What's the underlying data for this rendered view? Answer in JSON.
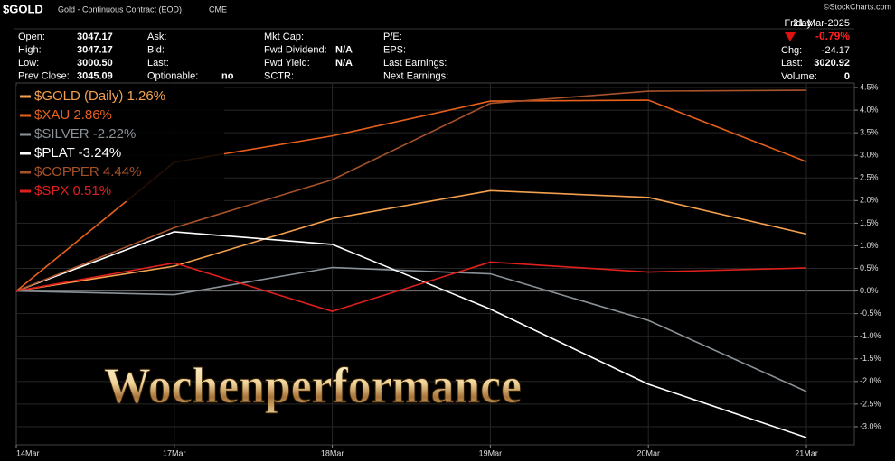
{
  "header": {
    "symbol": "$GOLD",
    "name": "Gold - Continuous Contract (EOD)",
    "exchange": "CME",
    "credit": "©StockCharts.com"
  },
  "info": [
    [
      {
        "label": "Open:",
        "value": "3047.17"
      },
      {
        "label": "High:",
        "value": "3047.17"
      },
      {
        "label": "Low:",
        "value": "3000.50"
      },
      {
        "label": "Prev Close:",
        "value": "3045.09"
      }
    ],
    [
      {
        "label": "Ask:"
      },
      {
        "label": "Bid:"
      },
      {
        "label": "Last:"
      },
      {
        "label": "Optionable:",
        "value": "no"
      }
    ],
    [
      {
        "label": "Mkt Cap:"
      },
      {
        "label": "Fwd Dividend:",
        "value": "N/A"
      },
      {
        "label": "Fwd Yield:",
        "value": "N/A"
      },
      {
        "label": "SCTR:"
      }
    ],
    [
      {
        "label": "P/E:"
      },
      {
        "label": "EPS:"
      },
      {
        "label": "Last Earnings:"
      },
      {
        "label": "Next Earnings:"
      }
    ]
  ],
  "quote": {
    "day": "Friday",
    "date": "21-Mar-2025",
    "change_pct": "-0.79%",
    "chg_label": "Chg:",
    "chg": "-24.17",
    "last_label": "Last:",
    "last": "3020.92",
    "volume_label": "Volume:",
    "volume": "0"
  },
  "chart_data": {
    "type": "line",
    "annotation": "Wochenperformance",
    "categories": [
      "14Mar",
      "17Mar",
      "18Mar",
      "19Mar",
      "20Mar",
      "21Mar"
    ],
    "series": [
      {
        "name": "$GOLD (Daily)",
        "last_label": "1.26%",
        "color": "#f5a04e",
        "values": [
          0,
          0.55,
          1.6,
          2.22,
          2.07,
          1.26
        ]
      },
      {
        "name": "$XAU",
        "last_label": "2.86%",
        "color": "#e8601c",
        "values": [
          0,
          2.85,
          3.43,
          4.2,
          4.22,
          2.86
        ]
      },
      {
        "name": "$SILVER",
        "last_label": "-2.22%",
        "color": "#8a9298",
        "values": [
          0,
          -0.08,
          0.52,
          0.38,
          -0.65,
          -2.22
        ]
      },
      {
        "name": "$PLAT",
        "last_label": "-3.24%",
        "color": "#ffffff",
        "values": [
          0,
          1.31,
          1.03,
          -0.4,
          -2.06,
          -3.24
        ]
      },
      {
        "name": "$COPPER",
        "last_label": "4.44%",
        "color": "#a8522a",
        "values": [
          0,
          1.4,
          2.46,
          4.15,
          4.42,
          4.44
        ]
      },
      {
        "name": "$SPX",
        "last_label": "0.51%",
        "color": "#e0201c",
        "values": [
          0,
          0.62,
          -0.45,
          0.64,
          0.42,
          0.51
        ]
      }
    ],
    "ylim": [
      -3.4,
      4.6
    ],
    "yticks": [
      {
        "value": 4.5,
        "label": "4.5%"
      },
      {
        "value": 4,
        "label": "4.0%"
      },
      {
        "value": 3.5,
        "label": "3.5%"
      },
      {
        "value": 3,
        "label": "3.0%"
      },
      {
        "value": 2.5,
        "label": "2.5%"
      },
      {
        "value": 2,
        "label": "2.0%"
      },
      {
        "value": 1.5,
        "label": "1.5%"
      },
      {
        "value": 1,
        "label": "1.0%"
      },
      {
        "value": 0.5,
        "label": "0.5%"
      },
      {
        "value": 0,
        "label": "0.0%"
      },
      {
        "value": -0.5,
        "label": "-0.5%"
      },
      {
        "value": -1,
        "label": "-1.0%"
      },
      {
        "value": -1.5,
        "label": "-1.5%"
      },
      {
        "value": -2,
        "label": "-2.0%"
      },
      {
        "value": -2.5,
        "label": "-2.5%"
      },
      {
        "value": -3,
        "label": "-3.0%"
      }
    ],
    "grid": true
  }
}
